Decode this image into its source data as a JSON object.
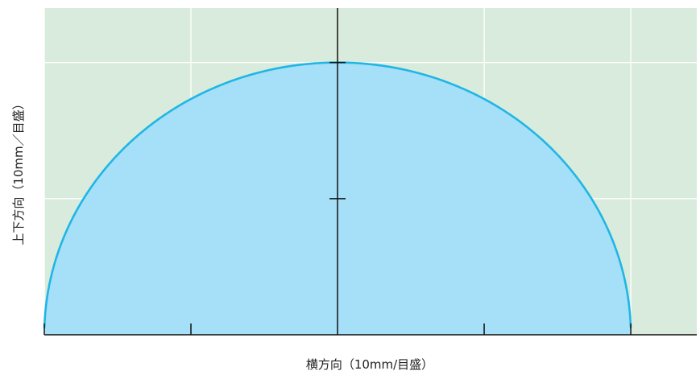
{
  "chart_data": {
    "type": "area",
    "xlabel": "横方向（10mm/目盛）",
    "ylabel": "上下方向（10mm／目盛）",
    "xlim": [
      -2.0,
      2.45
    ],
    "ylim": [
      0,
      2.4
    ],
    "x_grid": [
      -2,
      -1,
      0,
      1,
      2
    ],
    "y_grid": [
      1,
      2
    ],
    "grid": true,
    "series": [
      {
        "shape": "semicircle",
        "x": [
          -2.0,
          -1.75,
          -1.5,
          -1.25,
          -1.0,
          -0.75,
          -0.5,
          -0.25,
          0,
          0.25,
          0.5,
          0.75,
          1.0,
          1.25,
          1.5,
          1.75,
          2.0
        ],
        "y": [
          0.05,
          0.97,
          1.32,
          1.56,
          1.73,
          1.85,
          1.94,
          1.98,
          2.0,
          1.98,
          1.94,
          1.85,
          1.73,
          1.56,
          1.32,
          0.97,
          0.05
        ]
      }
    ],
    "colors": {
      "background": "#d9ebdc",
      "grid": "#ffffff",
      "fill": "#a6dff8",
      "stroke": "#1fb6e6",
      "axis": "#111111"
    }
  }
}
